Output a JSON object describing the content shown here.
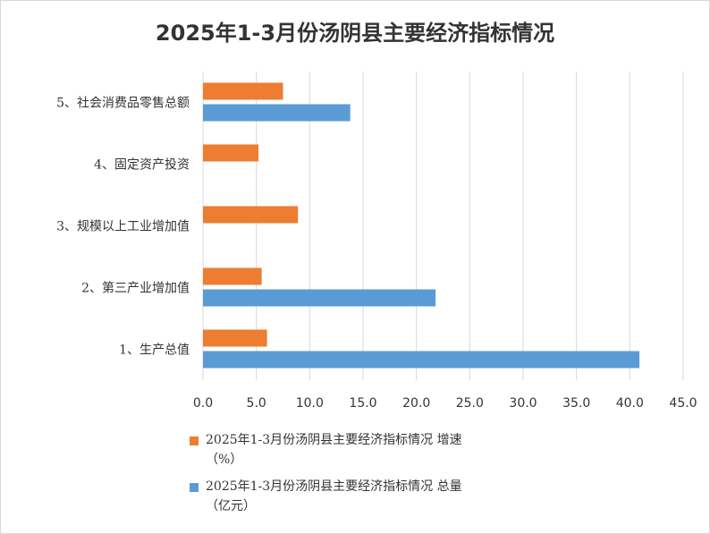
{
  "chart_data": {
    "type": "bar",
    "orientation": "horizontal",
    "title": "2025年1-3月份汤阴县主要经济指标情况",
    "categories": [
      "1、生产总值",
      "2、第三产业增加值",
      "3、规模以上工业增加值",
      "4、固定资产投资",
      "5、社会消费品零售总额"
    ],
    "series": [
      {
        "name": "2025年1-3月份汤阴县主要经济指标情况 增速（%）",
        "legend_line1": "2025年1-3月份汤阴县主要经济指标情况 增速",
        "legend_line2": "（%）",
        "color": "#ED7D31",
        "values": [
          6.0,
          5.5,
          8.9,
          5.2,
          7.5
        ]
      },
      {
        "name": "2025年1-3月份汤阴县主要经济指标情况 总量（亿元）",
        "legend_line1": "2025年1-3月份汤阴县主要经济指标情况 总量",
        "legend_line2": "（亿元）",
        "color": "#5B9BD5",
        "values": [
          40.9,
          21.8,
          null,
          null,
          13.8
        ]
      }
    ],
    "xlim": [
      0,
      45
    ],
    "xticks": [
      "0.0",
      "5.0",
      "10.0",
      "15.0",
      "20.0",
      "25.0",
      "30.0",
      "35.0",
      "40.0",
      "45.0"
    ],
    "grid": true,
    "legend_position": "bottom"
  }
}
